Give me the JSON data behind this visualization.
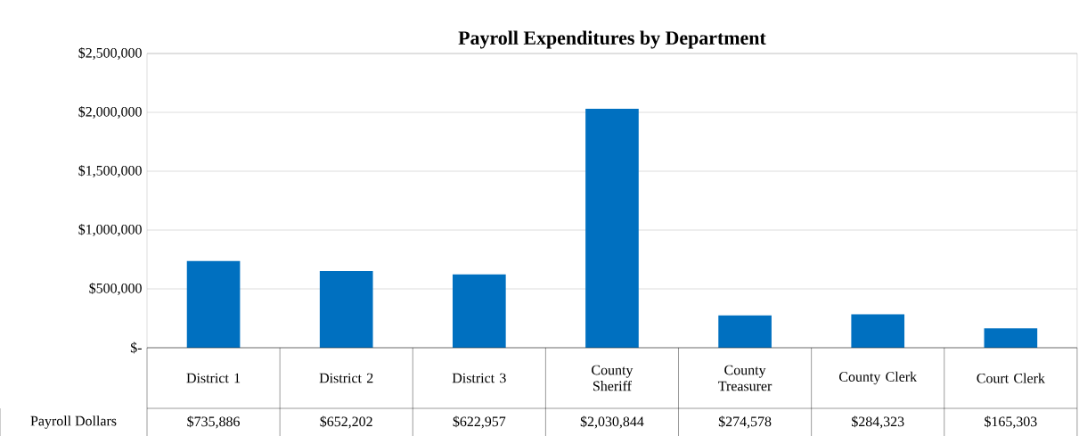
{
  "chart_data": {
    "type": "bar",
    "title": "Payroll Expenditures by Department",
    "categories": [
      "District 1",
      "District 2",
      "District 3",
      "County Sheriff",
      "County Treasurer",
      "County Clerk",
      "Court Clerk"
    ],
    "series": [
      {
        "name": "Payroll Dollars",
        "color": "#0070c0",
        "values": [
          735886,
          652202,
          622957,
          2030844,
          274578,
          284323,
          165303
        ],
        "value_labels": [
          "$735,886",
          "$652,202",
          "$622,957",
          "$2,030,844",
          "$274,578",
          "$284,323",
          "$165,303"
        ]
      }
    ],
    "ylim": [
      0,
      2500000
    ],
    "yticks": [
      {
        "value": 0,
        "label": "$-"
      },
      {
        "value": 500000,
        "label": "$500,000"
      },
      {
        "value": 1000000,
        "label": "$1,000,000"
      },
      {
        "value": 1500000,
        "label": "$1,500,000"
      },
      {
        "value": 2000000,
        "label": "$2,000,000"
      },
      {
        "value": 2500000,
        "label": "$2,500,000"
      }
    ],
    "grid": "y"
  }
}
